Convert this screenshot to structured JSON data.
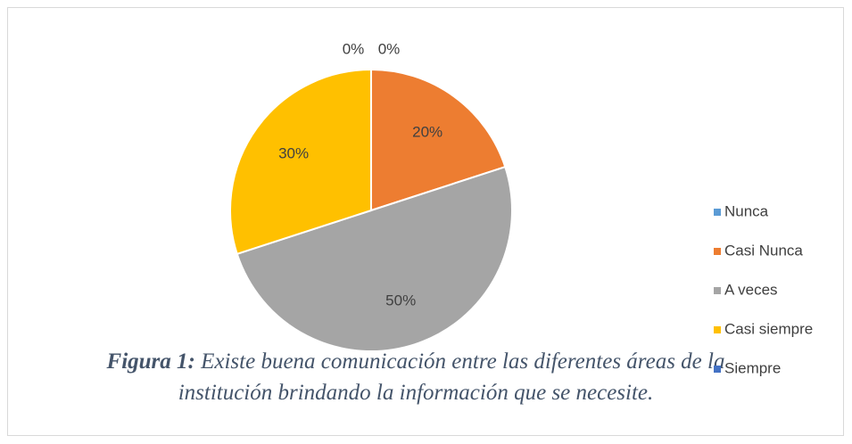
{
  "chart_data": {
    "type": "pie",
    "categories": [
      "Nunca",
      "Casi Nunca",
      "A veces",
      "Casi siempre",
      "Siempre"
    ],
    "values": [
      0,
      20,
      50,
      30,
      0
    ],
    "value_labels": [
      "0%",
      "20%",
      "50%",
      "30%",
      "0%"
    ],
    "colors": [
      "#5b9bd5",
      "#ed7d31",
      "#a5a5a5",
      "#ffc000",
      "#4472c4"
    ],
    "legend": "right",
    "caption_label": "Figura 1:",
    "caption": "Existe buena comunicación entre las diferentes áreas de la institución brindando la información que se necesite."
  }
}
